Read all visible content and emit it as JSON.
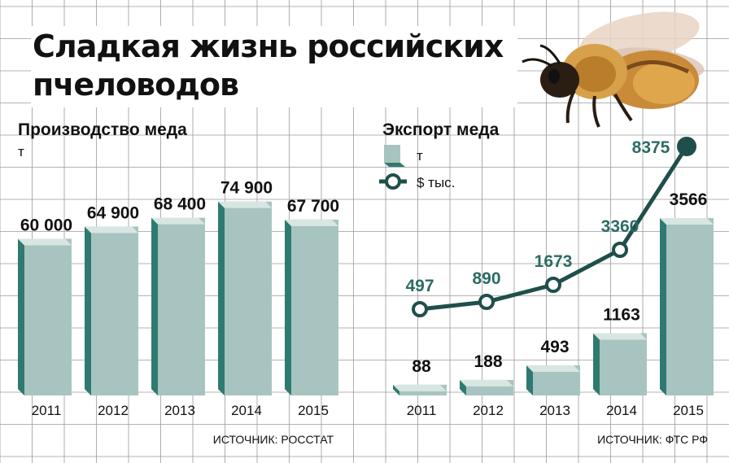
{
  "title": "Сладкая жизнь российских пчеловодов",
  "colors": {
    "bar_face": "#a8c4c0",
    "bar_side": "#2f7a70",
    "bar_top": "#d8e6e3",
    "line": "#1f4f4a",
    "label_dark": "#111111",
    "label_teal": "#2d6b65",
    "grid": "#9a9a9a"
  },
  "icons": [
    "bee-illustration"
  ],
  "chart_data": [
    {
      "type": "bar",
      "title": "Производство меда",
      "unit": "т",
      "categories": [
        "2011",
        "2012",
        "2013",
        "2014",
        "2015"
      ],
      "values": [
        60000,
        64900,
        68400,
        74900,
        67700
      ],
      "value_labels": [
        "60 000",
        "64 900",
        "68 400",
        "74 900",
        "67 700"
      ],
      "ylim": [
        0,
        80000
      ],
      "source": "ИСТОЧНИК: РОССТАТ"
    },
    {
      "type": "bar",
      "title": "Экспорт меда",
      "categories": [
        "2011",
        "2012",
        "2013",
        "2014",
        "2015"
      ],
      "legend": [
        "т",
        "$ тыс."
      ],
      "series": [
        {
          "name": "т",
          "type": "bar",
          "values": [
            88,
            188,
            493,
            1163,
            3566
          ],
          "value_labels": [
            "88",
            "188",
            "493",
            "1163",
            "3566"
          ]
        },
        {
          "name": "$ тыс.",
          "type": "line",
          "values": [
            497,
            890,
            1673,
            3360,
            8375
          ],
          "value_labels": [
            "497",
            "890",
            "1673",
            "3360",
            "8375"
          ]
        }
      ],
      "source": "ИСТОЧНИК: ФТС РФ"
    }
  ]
}
